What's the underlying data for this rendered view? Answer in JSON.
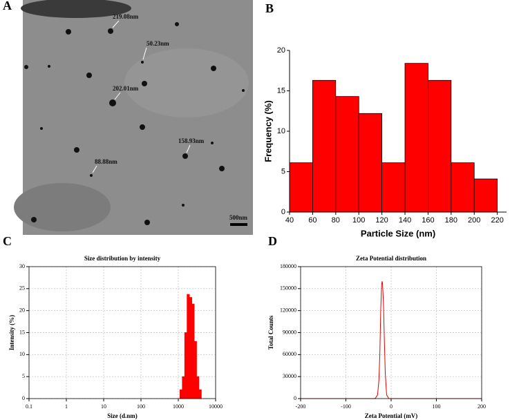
{
  "panel_labels": [
    "A",
    "B",
    "C",
    "D"
  ],
  "image": {
    "annotations": [
      "219.08nm",
      "50.23nm",
      "202.01nm",
      "158.93nm",
      "88.88nm"
    ],
    "scale_bar": "500nm"
  },
  "chart_data": [
    {
      "type": "histogram",
      "xlabel": "Particle Size (nm)",
      "ylabel": "Frequency (%)",
      "bins": [
        40,
        60,
        80,
        100,
        120,
        140,
        160,
        180,
        200,
        220
      ],
      "values": [
        6.1,
        16.3,
        14.3,
        12.2,
        6.1,
        18.4,
        16.3,
        6.1,
        4.1
      ],
      "color": "#ff0000",
      "xlim": [
        40,
        228
      ],
      "xticks": [
        40,
        60,
        80,
        100,
        120,
        140,
        160,
        180,
        200,
        220
      ],
      "ylim": [
        0,
        20
      ],
      "yticks": [
        0,
        5,
        10,
        15,
        20
      ],
      "grid": false
    },
    {
      "type": "histogram",
      "title": "Size distribution by intensity",
      "xlabel": "Size (d.nm)",
      "ylabel": "Intensity (%)",
      "bins": [
        1106,
        1281,
        1484,
        1718,
        1990,
        2305,
        2669,
        3091,
        3580,
        4145
      ],
      "values": [
        2,
        5,
        15,
        23.7,
        23,
        21.5,
        13,
        5,
        2
      ],
      "color": "#ff0000",
      "xscale": "log",
      "xlim": [
        0.1,
        10000
      ],
      "xticks": [
        0.1,
        1,
        10,
        100,
        1000,
        10000
      ],
      "ylim": [
        0,
        30
      ],
      "yticks": [
        0,
        5,
        10,
        15,
        20,
        25,
        30
      ],
      "grid": true
    },
    {
      "type": "line",
      "title": "Zeta Potential distribution",
      "xlabel": "Zeta Potential (mV)",
      "ylabel": "Total Counts",
      "x": [
        -200,
        -40,
        -35,
        -30,
        -27,
        -25,
        -23,
        -21,
        -20,
        -19,
        -17,
        -15,
        -13,
        -10,
        -5,
        0,
        200
      ],
      "values": [
        0,
        0,
        200,
        5000,
        25000,
        60000,
        120000,
        155000,
        160000,
        157000,
        130000,
        80000,
        35000,
        5000,
        0,
        0,
        0
      ],
      "color": "#e00000",
      "xlim": [
        -200,
        200
      ],
      "xticks": [
        -200,
        -100,
        0,
        100,
        200
      ],
      "ylim": [
        0,
        180000
      ],
      "yticks": [
        0,
        30000,
        60000,
        90000,
        120000,
        150000,
        180000
      ],
      "grid": true
    }
  ]
}
